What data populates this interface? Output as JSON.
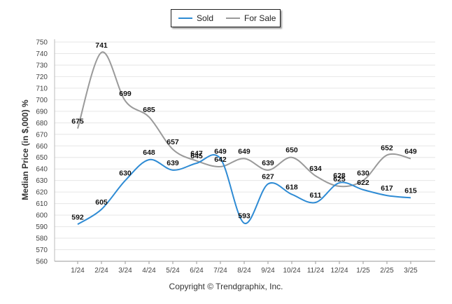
{
  "chart_data": {
    "type": "line",
    "categories": [
      "1/24",
      "2/24",
      "3/24",
      "4/24",
      "5/24",
      "6/24",
      "7/24",
      "8/24",
      "9/24",
      "10/24",
      "11/24",
      "12/24",
      "1/25",
      "2/25",
      "3/25"
    ],
    "series": [
      {
        "name": "Sold",
        "color": "#2e8bd4",
        "values": [
          592,
          605,
          630,
          648,
          639,
          645,
          649,
          593,
          627,
          618,
          611,
          628,
          622,
          617,
          615
        ]
      },
      {
        "name": "For Sale",
        "color": "#9a9a9a",
        "values": [
          675,
          741,
          699,
          685,
          657,
          647,
          642,
          649,
          639,
          650,
          634,
          625,
          630,
          652,
          649
        ]
      }
    ],
    "ylabel": "Median Price (in $,000) %",
    "ylim": [
      560,
      750
    ],
    "ytick_step": 10,
    "grid": true,
    "legend_position": "top-center"
  },
  "footer": {
    "copyright": "Copyright © Trendgraphix, Inc."
  }
}
